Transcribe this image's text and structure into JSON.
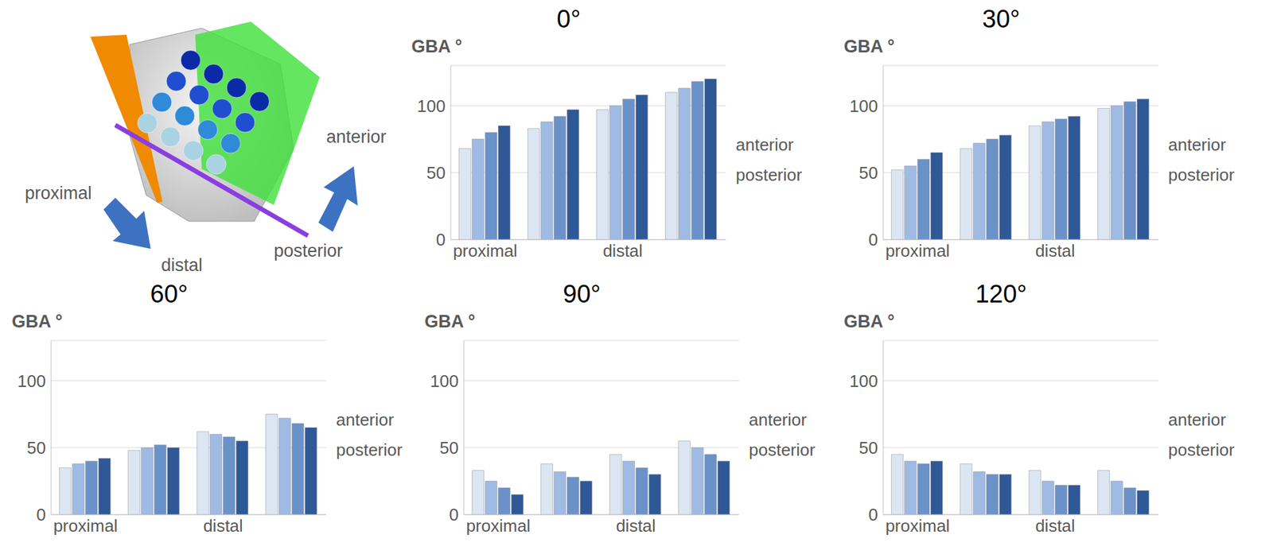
{
  "diagram": {
    "labels": {
      "proximal": "proximal",
      "distal": "distal",
      "anterior": "anterior",
      "posterior": "posterior"
    }
  },
  "chart_data": [
    {
      "type": "bar",
      "title": "0°",
      "y_label": "GBA °",
      "categories": [
        "proximal",
        null,
        "distal",
        null
      ],
      "ylim": [
        0,
        130
      ],
      "yticks": [
        0,
        50,
        100
      ],
      "grid": true,
      "series": [
        {
          "name": "posterior",
          "color": "#dce6f2",
          "values": [
            68,
            83,
            97,
            110
          ]
        },
        {
          "name": null,
          "color": "#9fbbe3",
          "values": [
            75,
            88,
            100,
            113
          ]
        },
        {
          "name": null,
          "color": "#6a92c9",
          "values": [
            80,
            92,
            105,
            118
          ]
        },
        {
          "name": "anterior",
          "color": "#2f5897",
          "values": [
            85,
            97,
            108,
            120
          ]
        }
      ]
    },
    {
      "type": "bar",
      "title": "30°",
      "y_label": "GBA °",
      "categories": [
        "proximal",
        null,
        "distal",
        null
      ],
      "ylim": [
        0,
        130
      ],
      "yticks": [
        0,
        50,
        100
      ],
      "grid": true,
      "series": [
        {
          "name": "posterior",
          "color": "#dce6f2",
          "values": [
            52,
            68,
            85,
            98
          ]
        },
        {
          "name": null,
          "color": "#9fbbe3",
          "values": [
            55,
            72,
            88,
            100
          ]
        },
        {
          "name": null,
          "color": "#6a92c9",
          "values": [
            60,
            75,
            90,
            103
          ]
        },
        {
          "name": "anterior",
          "color": "#2f5897",
          "values": [
            65,
            78,
            92,
            105
          ]
        }
      ]
    },
    {
      "type": "bar",
      "title": "60°",
      "y_label": "GBA °",
      "categories": [
        "proximal",
        null,
        "distal",
        null
      ],
      "ylim": [
        0,
        130
      ],
      "yticks": [
        0,
        50,
        100
      ],
      "grid": true,
      "series": [
        {
          "name": "posterior",
          "color": "#dce6f2",
          "values": [
            35,
            48,
            62,
            75
          ]
        },
        {
          "name": null,
          "color": "#9fbbe3",
          "values": [
            38,
            50,
            60,
            72
          ]
        },
        {
          "name": null,
          "color": "#6a92c9",
          "values": [
            40,
            52,
            58,
            68
          ]
        },
        {
          "name": "anterior",
          "color": "#2f5897",
          "values": [
            42,
            50,
            55,
            65
          ]
        }
      ]
    },
    {
      "type": "bar",
      "title": "90°",
      "y_label": "GBA °",
      "categories": [
        "proximal",
        null,
        "distal",
        null
      ],
      "ylim": [
        0,
        130
      ],
      "yticks": [
        0,
        50,
        100
      ],
      "grid": true,
      "series": [
        {
          "name": "posterior",
          "color": "#dce6f2",
          "values": [
            33,
            38,
            45,
            55
          ]
        },
        {
          "name": null,
          "color": "#9fbbe3",
          "values": [
            25,
            32,
            40,
            50
          ]
        },
        {
          "name": null,
          "color": "#6a92c9",
          "values": [
            20,
            28,
            35,
            45
          ]
        },
        {
          "name": "anterior",
          "color": "#2f5897",
          "values": [
            15,
            25,
            30,
            40
          ]
        }
      ]
    },
    {
      "type": "bar",
      "title": "120°",
      "y_label": "GBA °",
      "categories": [
        "proximal",
        null,
        "distal",
        null
      ],
      "ylim": [
        0,
        130
      ],
      "yticks": [
        0,
        50,
        100
      ],
      "grid": true,
      "series": [
        {
          "name": "posterior",
          "color": "#dce6f2",
          "values": [
            45,
            38,
            33,
            33
          ]
        },
        {
          "name": null,
          "color": "#9fbbe3",
          "values": [
            40,
            32,
            25,
            25
          ]
        },
        {
          "name": null,
          "color": "#6a92c9",
          "values": [
            38,
            30,
            22,
            20
          ]
        },
        {
          "name": "anterior",
          "color": "#2f5897",
          "values": [
            40,
            30,
            22,
            18
          ]
        }
      ]
    }
  ]
}
